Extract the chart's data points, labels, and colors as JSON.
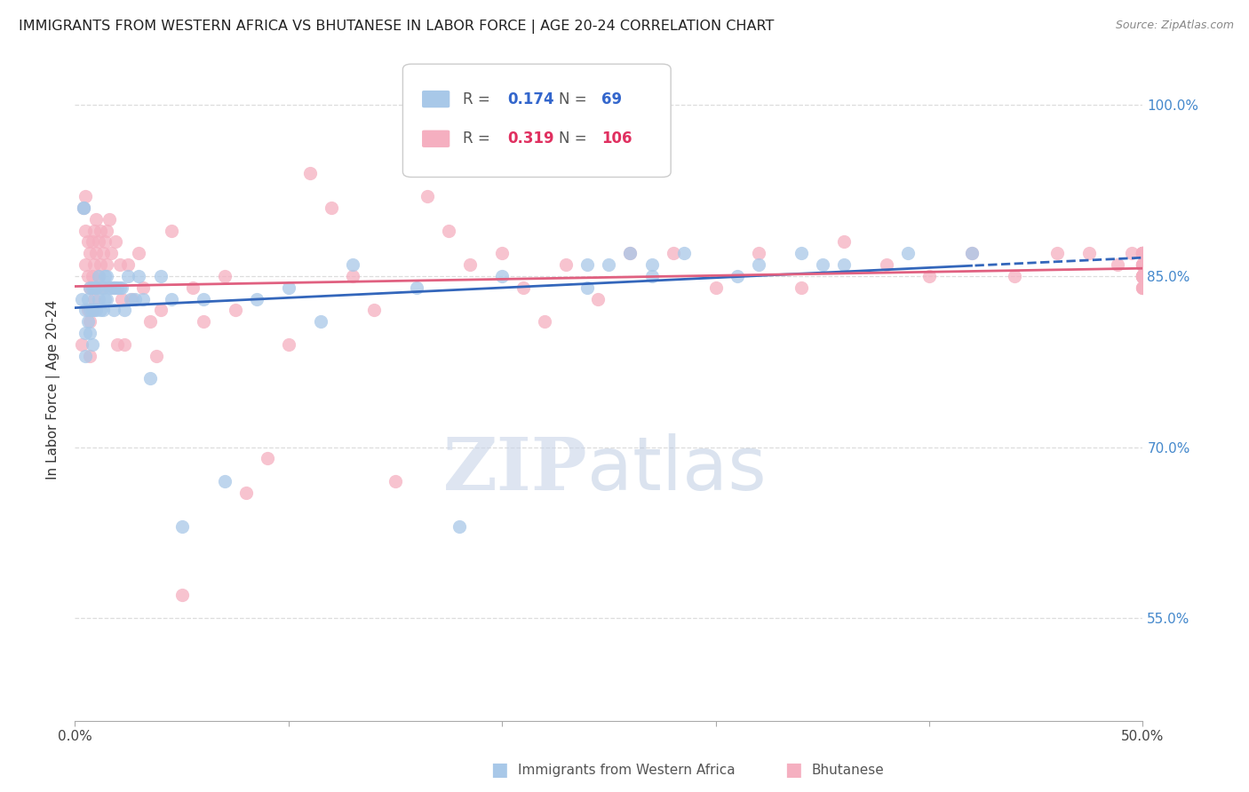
{
  "title": "IMMIGRANTS FROM WESTERN AFRICA VS BHUTANESE IN LABOR FORCE | AGE 20-24 CORRELATION CHART",
  "source": "Source: ZipAtlas.com",
  "ylabel": "In Labor Force | Age 20-24",
  "xmin": 0.0,
  "xmax": 0.5,
  "ymin": 0.46,
  "ymax": 1.04,
  "ytick_vals": [
    0.55,
    0.7,
    0.85,
    1.0
  ],
  "ytick_labels": [
    "55.0%",
    "70.0%",
    "85.0%",
    "100.0%"
  ],
  "xtick_vals": [
    0.0,
    0.1,
    0.2,
    0.3,
    0.4,
    0.5
  ],
  "xtick_labels": [
    "0.0%",
    "",
    "",
    "",
    "",
    "50.0%"
  ],
  "blue_R": 0.174,
  "blue_N": 69,
  "pink_R": 0.319,
  "pink_N": 106,
  "blue_color": "#a8c8e8",
  "pink_color": "#f5afc0",
  "blue_line_color": "#3366bb",
  "pink_line_color": "#e06080",
  "blue_scatter_x": [
    0.003,
    0.004,
    0.004,
    0.005,
    0.005,
    0.005,
    0.006,
    0.006,
    0.007,
    0.007,
    0.007,
    0.008,
    0.008,
    0.008,
    0.009,
    0.009,
    0.01,
    0.01,
    0.011,
    0.011,
    0.012,
    0.012,
    0.013,
    0.013,
    0.014,
    0.014,
    0.015,
    0.015,
    0.016,
    0.017,
    0.018,
    0.018,
    0.019,
    0.02,
    0.021,
    0.022,
    0.023,
    0.025,
    0.026,
    0.028,
    0.03,
    0.032,
    0.035,
    0.04,
    0.045,
    0.05,
    0.06,
    0.07,
    0.085,
    0.1,
    0.115,
    0.13,
    0.16,
    0.18,
    0.2,
    0.24,
    0.27,
    0.31,
    0.35,
    0.24,
    0.25,
    0.26,
    0.27,
    0.285,
    0.32,
    0.34,
    0.36,
    0.39,
    0.42
  ],
  "blue_scatter_y": [
    0.83,
    0.91,
    0.91,
    0.82,
    0.8,
    0.78,
    0.83,
    0.81,
    0.84,
    0.82,
    0.8,
    0.84,
    0.82,
    0.79,
    0.84,
    0.82,
    0.84,
    0.82,
    0.85,
    0.83,
    0.84,
    0.82,
    0.84,
    0.82,
    0.85,
    0.83,
    0.85,
    0.83,
    0.84,
    0.84,
    0.84,
    0.82,
    0.84,
    0.84,
    0.84,
    0.84,
    0.82,
    0.85,
    0.83,
    0.83,
    0.85,
    0.83,
    0.76,
    0.85,
    0.83,
    0.63,
    0.83,
    0.67,
    0.83,
    0.84,
    0.81,
    0.86,
    0.84,
    0.63,
    0.85,
    0.84,
    0.85,
    0.85,
    0.86,
    0.86,
    0.86,
    0.87,
    0.86,
    0.87,
    0.86,
    0.87,
    0.86,
    0.87,
    0.87
  ],
  "pink_scatter_x": [
    0.003,
    0.004,
    0.005,
    0.005,
    0.005,
    0.006,
    0.006,
    0.006,
    0.007,
    0.007,
    0.007,
    0.007,
    0.008,
    0.008,
    0.008,
    0.009,
    0.009,
    0.009,
    0.01,
    0.01,
    0.01,
    0.011,
    0.011,
    0.012,
    0.012,
    0.013,
    0.013,
    0.014,
    0.015,
    0.015,
    0.016,
    0.017,
    0.018,
    0.019,
    0.02,
    0.021,
    0.022,
    0.023,
    0.025,
    0.027,
    0.03,
    0.032,
    0.035,
    0.038,
    0.04,
    0.045,
    0.05,
    0.055,
    0.06,
    0.07,
    0.075,
    0.08,
    0.09,
    0.1,
    0.11,
    0.12,
    0.13,
    0.14,
    0.15,
    0.165,
    0.175,
    0.185,
    0.2,
    0.21,
    0.22,
    0.23,
    0.245,
    0.26,
    0.28,
    0.3,
    0.32,
    0.34,
    0.36,
    0.38,
    0.4,
    0.42,
    0.44,
    0.46,
    0.475,
    0.488,
    0.495,
    0.5,
    0.5,
    0.5,
    0.5,
    0.5,
    0.5,
    0.5,
    0.5,
    0.5,
    0.5,
    0.5,
    0.5,
    0.5,
    0.5,
    0.5,
    0.5,
    0.5,
    0.5,
    0.5,
    0.5,
    0.5,
    0.5,
    0.5,
    0.5,
    0.5
  ],
  "pink_scatter_y": [
    0.79,
    0.91,
    0.92,
    0.89,
    0.86,
    0.88,
    0.85,
    0.82,
    0.87,
    0.84,
    0.81,
    0.78,
    0.88,
    0.85,
    0.82,
    0.89,
    0.86,
    0.83,
    0.9,
    0.87,
    0.84,
    0.88,
    0.85,
    0.89,
    0.86,
    0.87,
    0.84,
    0.88,
    0.89,
    0.86,
    0.9,
    0.87,
    0.84,
    0.88,
    0.79,
    0.86,
    0.83,
    0.79,
    0.86,
    0.83,
    0.87,
    0.84,
    0.81,
    0.78,
    0.82,
    0.89,
    0.57,
    0.84,
    0.81,
    0.85,
    0.82,
    0.66,
    0.69,
    0.79,
    0.94,
    0.91,
    0.85,
    0.82,
    0.67,
    0.92,
    0.89,
    0.86,
    0.87,
    0.84,
    0.81,
    0.86,
    0.83,
    0.87,
    0.87,
    0.84,
    0.87,
    0.84,
    0.88,
    0.86,
    0.85,
    0.87,
    0.85,
    0.87,
    0.87,
    0.86,
    0.87,
    0.86,
    0.85,
    0.87,
    0.85,
    0.87,
    0.85,
    0.86,
    0.84,
    0.85,
    0.87,
    0.85,
    0.87,
    0.85,
    0.86,
    0.84,
    0.86,
    0.85,
    0.87,
    0.85,
    0.86,
    0.84,
    0.85,
    0.87,
    0.87,
    0.85
  ],
  "grid_color": "#dddddd",
  "watermark_zip_color": "#c8d4e8",
  "watermark_atlas_color": "#b8c8e0"
}
